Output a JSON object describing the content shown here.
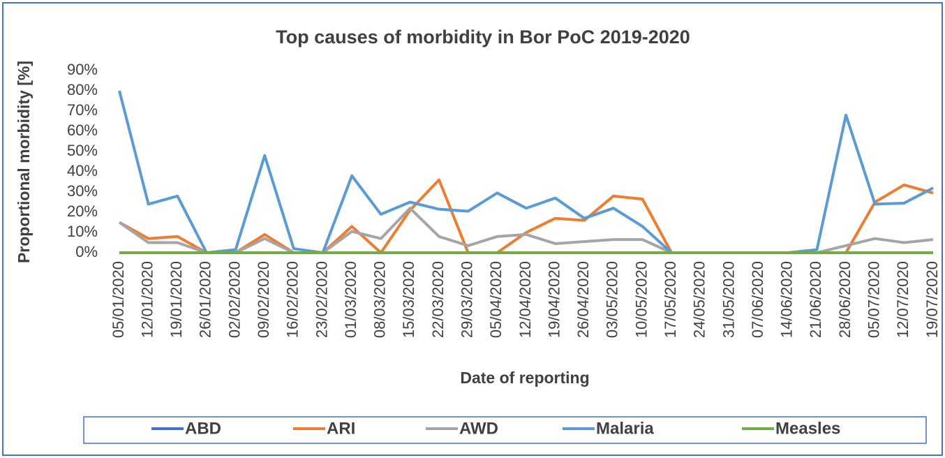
{
  "chart_data": {
    "type": "line",
    "title": "Top causes of morbidity in Bor PoC 2019-2020",
    "x_label": "Date of reporting",
    "y_label": "Proportional morbidity [%]",
    "categories": [
      "05/01/2020",
      "12/01/2020",
      "19/01/2020",
      "26/01/2020",
      "02/02/2020",
      "09/02/2020",
      "16/02/2020",
      "23/02/2020",
      "01/03/2020",
      "08/03/2020",
      "15/03/2020",
      "22/03/2020",
      "29/03/2020",
      "05/04/2020",
      "12/04/2020",
      "19/04/2020",
      "26/04/2020",
      "03/05/2020",
      "10/05/2020",
      "17/05/2020",
      "24/05/2020",
      "31/05/2020",
      "07/06/2020",
      "14/06/2020",
      "21/06/2020",
      "28/06/2020",
      "05/07/2020",
      "12/07/2020",
      "19/07/2020"
    ],
    "series": [
      {
        "name": "ABD",
        "color": "#4472c4",
        "values": [
          0,
          0,
          0,
          0,
          0,
          0,
          0,
          0,
          0,
          0,
          0,
          0,
          0,
          0,
          0,
          0,
          0,
          0,
          0,
          0,
          0,
          0,
          0,
          0,
          0,
          0,
          0,
          0,
          0
        ]
      },
      {
        "name": "ARI",
        "color": "#ed7d31",
        "values": [
          15,
          7,
          8,
          0,
          0,
          9,
          0,
          0,
          13,
          0,
          21,
          36,
          0,
          0,
          10,
          17,
          16,
          28,
          26.5,
          0,
          0,
          0,
          0,
          0,
          0,
          0,
          25,
          33.5,
          29.5
        ]
      },
      {
        "name": "AWD",
        "color": "#a5a5a5",
        "values": [
          15,
          5,
          5,
          0,
          0,
          7,
          0,
          0,
          10.5,
          7,
          22,
          8,
          3.5,
          8,
          9,
          4.5,
          5.5,
          6.5,
          6.5,
          0,
          0,
          0,
          0,
          0,
          0,
          3.5,
          7,
          5,
          6.5
        ]
      },
      {
        "name": "Malaria",
        "color": "#5b9bd5",
        "values": [
          80,
          24,
          28,
          0,
          1.5,
          48,
          2,
          0,
          38,
          19,
          25,
          21.5,
          20.5,
          29.5,
          22,
          27,
          17,
          22,
          13,
          0,
          0,
          0,
          0,
          0,
          1.5,
          68,
          24,
          24.5,
          32
        ]
      },
      {
        "name": "Measles",
        "color": "#70ad47",
        "values": [
          0,
          0,
          0,
          0,
          0,
          0,
          0,
          0,
          0,
          0,
          0,
          0,
          0,
          0,
          0,
          0,
          0,
          0,
          0,
          0,
          0,
          0,
          0,
          0,
          0,
          0,
          0,
          0,
          0
        ]
      }
    ],
    "ylim": [
      0,
      90
    ],
    "yticks": [
      {
        "value": 0,
        "label": "0%"
      },
      {
        "value": 10,
        "label": "10%"
      },
      {
        "value": 20,
        "label": "20%"
      },
      {
        "value": 30,
        "label": "30%"
      },
      {
        "value": 40,
        "label": "40%"
      },
      {
        "value": 50,
        "label": "50%"
      },
      {
        "value": 60,
        "label": "60%"
      },
      {
        "value": 70,
        "label": "70%"
      },
      {
        "value": 80,
        "label": "80%"
      },
      {
        "value": 90,
        "label": "90%"
      }
    ],
    "legend": "bottom"
  }
}
